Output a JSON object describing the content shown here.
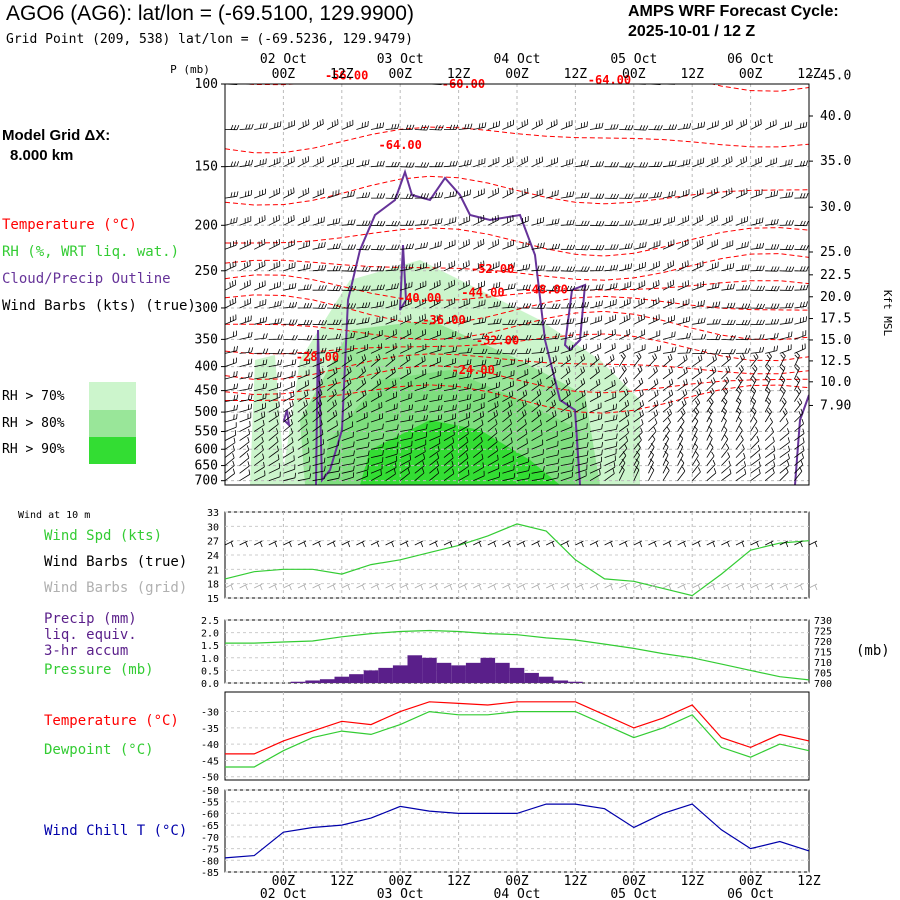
{
  "header": {
    "title": "AGO6 (AG6):  lat/lon = (-69.5100, 129.9900)",
    "subtitle": "Grid Point (209, 538) lat/lon = (-69.5236, 129.9479)",
    "forecast_line1": "AMPS WRF Forecast Cycle:",
    "forecast_line2": "2025-10-01 / 12  Z"
  },
  "model_grid": {
    "line1": "Model Grid ΔX:",
    "line2": "8.000 km"
  },
  "legend": {
    "temperature": "Temperature (°C)",
    "rh": "RH (%, WRT liq. wat.)",
    "cloud": "Cloud/Precip Outline",
    "wind": "Wind Barbs (kts) (true)",
    "rh70": "RH > 70%",
    "rh80": "RH > 80%",
    "rh90": "RH > 90%"
  },
  "panels": {
    "wind10m_title": "Wind at 10 m",
    "wind_spd": "Wind Spd (kts)",
    "wind_barbs_true": "Wind Barbs (true)",
    "wind_barbs_grid": "Wind Barbs (grid)",
    "precip_1": "Precip (mm)",
    "precip_2": "liq. equiv.",
    "precip_3": "3-hr accum",
    "pressure": "Pressure (mb)",
    "temperature": "Temperature (°C)",
    "dewpoint": "Dewpoint (°C)",
    "windchill": "Wind Chill T (°C)",
    "mb_unit": "(mb)"
  },
  "colors": {
    "temperature": "#ff0000",
    "rh_green": "#33cc33",
    "cloud": "#663399",
    "precip": "#5a1f8a",
    "windchill": "#0000aa",
    "rh70": "#ccf5cc",
    "rh80": "#99e699",
    "rh90": "#33dd33"
  },
  "chart_data": [
    {
      "type": "heatmap",
      "name": "cross-section",
      "ylabel": "P (mb)",
      "right_label": "Kft MSL",
      "x_ticks": [
        "00Z",
        "12Z",
        "00Z",
        "12Z",
        "00Z",
        "12Z",
        "00Z",
        "12Z",
        "00Z",
        "12Z"
      ],
      "x_hours": [
        12,
        24,
        36,
        48,
        60,
        72,
        84,
        96,
        108,
        120
      ],
      "date_labels": [
        {
          "label": "02 Oct",
          "hour": 12
        },
        {
          "label": "03 Oct",
          "hour": 36
        },
        {
          "label": "04 Oct",
          "hour": 60
        },
        {
          "label": "05 Oct",
          "hour": 84
        },
        {
          "label": "06 Oct",
          "hour": 108
        }
      ],
      "xlim": [
        0,
        120
      ],
      "pressure_ticks": [
        "100",
        "150",
        "200",
        "250",
        "300",
        "350",
        "400",
        "450",
        "500",
        "550",
        "600",
        "650",
        "700"
      ],
      "ylim": [
        100,
        715
      ],
      "height_ticks": [
        {
          "label": "45.0",
          "p": 96
        },
        {
          "label": "40.0",
          "p": 117
        },
        {
          "label": "35.0",
          "p": 146
        },
        {
          "label": "30.0",
          "p": 183
        },
        {
          "label": "25.0",
          "p": 228
        },
        {
          "label": "22.5",
          "p": 255
        },
        {
          "label": "20.0",
          "p": 284
        },
        {
          "label": "17.5",
          "p": 316
        },
        {
          "label": "15.0",
          "p": 351
        },
        {
          "label": "12.5",
          "p": 389
        },
        {
          "label": "10.0",
          "p": 431
        },
        {
          "label": "7.90",
          "p": 484
        }
      ],
      "temperature_labels": [
        {
          "text": "-56.00",
          "hour": 25,
          "p": 96
        },
        {
          "text": "-60.00",
          "hour": 49,
          "p": 100
        },
        {
          "text": "-64.00",
          "hour": 79,
          "p": 98
        },
        {
          "text": "-64.00",
          "hour": 36,
          "p": 135
        },
        {
          "text": "-52.00",
          "hour": 55,
          "p": 248
        },
        {
          "text": "-44.00",
          "hour": 53,
          "p": 278
        },
        {
          "text": "-48.00",
          "hour": 66,
          "p": 274
        },
        {
          "text": "-40.00",
          "hour": 40,
          "p": 286
        },
        {
          "text": "-36.00",
          "hour": 45,
          "p": 318
        },
        {
          "text": "-32.00",
          "hour": 56,
          "p": 352
        },
        {
          "text": "-28.00",
          "hour": 19,
          "p": 382
        },
        {
          "text": "-24.00",
          "hour": 51,
          "p": 407
        }
      ]
    },
    {
      "type": "line",
      "name": "wind_speed_10m",
      "ylabel": "Wind Spd (kts)",
      "y_ticks": [
        15,
        18,
        21,
        24,
        27,
        30,
        33
      ],
      "ylim": [
        15,
        33
      ],
      "x_hours": [
        0,
        6,
        12,
        18,
        24,
        30,
        36,
        42,
        48,
        54,
        60,
        66,
        72,
        78,
        84,
        90,
        96,
        102,
        108,
        114,
        120
      ],
      "values": [
        19,
        20.5,
        21,
        21,
        20,
        22,
        23,
        24.5,
        26,
        28,
        30.5,
        29,
        23,
        19,
        18.5,
        17,
        15.5,
        20,
        25,
        26.5,
        27
      ]
    },
    {
      "type": "bar",
      "name": "precip_3hr",
      "ylabel": "Precip (mm)",
      "y_ticks": [
        0.0,
        0.5,
        1.0,
        1.5,
        2.0,
        2.5
      ],
      "ylim": [
        0,
        2.5
      ],
      "x_hours": [
        15,
        18,
        21,
        24,
        27,
        30,
        33,
        36,
        39,
        42,
        45,
        48,
        51,
        54,
        57,
        60,
        63,
        66,
        69,
        72
      ],
      "values": [
        0.05,
        0.1,
        0.15,
        0.25,
        0.35,
        0.5,
        0.6,
        0.7,
        1.1,
        1.0,
        0.8,
        0.7,
        0.8,
        1.0,
        0.8,
        0.6,
        0.4,
        0.25,
        0.1,
        0.05
      ]
    },
    {
      "type": "line",
      "name": "pressure",
      "ylabel": "Pressure (mb)",
      "y_ticks": [
        700,
        705,
        710,
        715,
        720,
        725,
        730
      ],
      "ylim": [
        700,
        730
      ],
      "x_hours": [
        0,
        6,
        12,
        18,
        24,
        30,
        36,
        42,
        48,
        54,
        60,
        66,
        72,
        78,
        84,
        90,
        96,
        102,
        108,
        114,
        120
      ],
      "values": [
        719,
        719,
        719.5,
        720,
        722,
        723.5,
        724.5,
        725,
        724.5,
        723.5,
        723,
        721.5,
        720.5,
        718.5,
        716.5,
        714,
        712,
        709,
        706,
        703,
        701.5
      ]
    },
    {
      "type": "line",
      "name": "temperature_dewpoint",
      "y_ticks": [
        -50,
        -45,
        -40,
        -35,
        -30
      ],
      "ylim": [
        -51,
        -24
      ],
      "x_hours": [
        0,
        6,
        12,
        18,
        24,
        30,
        36,
        42,
        48,
        54,
        60,
        66,
        72,
        78,
        84,
        90,
        96,
        102,
        108,
        114,
        120
      ],
      "series": [
        {
          "name": "Temperature (°C)",
          "values": [
            -43,
            -43,
            -39,
            -36,
            -33,
            -34,
            -30,
            -27,
            -27.5,
            -28,
            -27,
            -27,
            -27,
            -31,
            -35,
            -32,
            -28,
            -38,
            -41,
            -37,
            -39
          ]
        },
        {
          "name": "Dewpoint (°C)",
          "values": [
            -47,
            -47,
            -42,
            -38,
            -36,
            -37,
            -34,
            -30,
            -31,
            -31,
            -30,
            -30,
            -30,
            -34,
            -38,
            -35,
            -31,
            -41,
            -44,
            -40,
            -42
          ]
        }
      ]
    },
    {
      "type": "line",
      "name": "wind_chill",
      "ylabel": "Wind Chill T (°C)",
      "y_ticks": [
        -85,
        -80,
        -75,
        -70,
        -65,
        -60,
        -55,
        -50
      ],
      "ylim": [
        -85,
        -50
      ],
      "x_hours": [
        0,
        6,
        12,
        18,
        24,
        30,
        36,
        42,
        48,
        54,
        60,
        66,
        72,
        78,
        84,
        90,
        96,
        102,
        108,
        114,
        120
      ],
      "values": [
        -79,
        -78,
        -68,
        -66,
        -65,
        -62,
        -57,
        -59,
        -60,
        -60,
        -60,
        -56,
        -56,
        -58,
        -66,
        -60,
        -56,
        -67,
        -75,
        -72,
        -76
      ]
    }
  ]
}
